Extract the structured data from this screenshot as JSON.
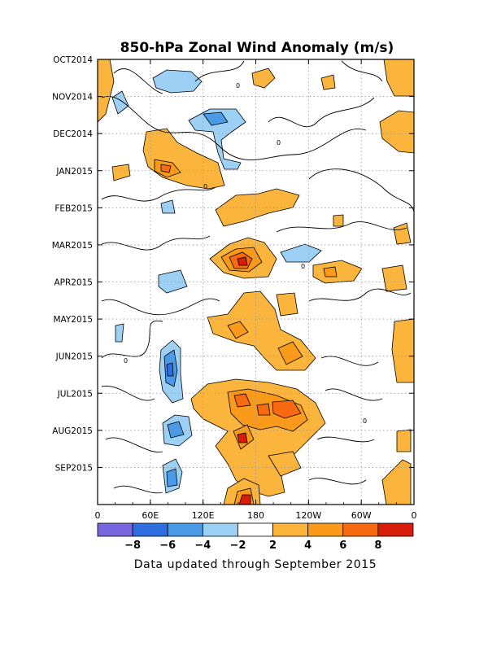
{
  "chart_data": {
    "type": "heatmap",
    "title": "850-hPa Zonal Wind Anomaly (m/s)",
    "x_tick_labels": [
      "0",
      "60E",
      "120E",
      "180",
      "120W",
      "60W",
      "0"
    ],
    "x_range_deg_east": [
      0,
      360
    ],
    "y_tick_labels": [
      "OCT2014",
      "NOV2014",
      "DEC2014",
      "JAN2015",
      "FEB2015",
      "MAR2015",
      "APR2015",
      "MAY2015",
      "JUN2015",
      "JUL2015",
      "AUG2015",
      "SEP2015"
    ],
    "y_range": [
      "2014-10-01",
      "2015-09-30"
    ],
    "grid": true,
    "colorbar": {
      "orientation": "horizontal",
      "tick_labels": [
        "-8",
        "-6",
        "-4",
        "-2",
        "2",
        "4",
        "6",
        "8"
      ],
      "colors": [
        "#7766dd",
        "#2e6ee0",
        "#4a9ae8",
        "#9cd0f5",
        "#ffffff",
        "#fbb43c",
        "#f99a1a",
        "#f86a12",
        "#d81e0a"
      ]
    },
    "contour_label": "0",
    "positive_anomaly_centers": [
      {
        "lon": 80,
        "date": "2015-01-08",
        "peak": 7
      },
      {
        "lon": 190,
        "date": "2015-02-05",
        "peak": 4
      },
      {
        "lon": 168,
        "date": "2015-03-15",
        "peak": 9
      },
      {
        "lon": 265,
        "date": "2015-03-28",
        "peak": 5
      },
      {
        "lon": 155,
        "date": "2015-05-10",
        "peak": 6
      },
      {
        "lon": 210,
        "date": "2015-05-30",
        "peak": 5
      },
      {
        "lon": 160,
        "date": "2015-07-03",
        "peak": 8
      },
      {
        "lon": 210,
        "date": "2015-07-10",
        "peak": 7
      },
      {
        "lon": 165,
        "date": "2015-07-28",
        "peak": 8
      },
      {
        "lon": 165,
        "date": "2015-09-25",
        "peak": 8
      },
      {
        "lon": 345,
        "date": "2014-12-05",
        "peak": 4
      }
    ],
    "negative_anomaly_centers": [
      {
        "lon": 95,
        "date": "2014-10-20",
        "peak": -3
      },
      {
        "lon": 140,
        "date": "2014-12-01",
        "peak": -3
      },
      {
        "lon": 80,
        "date": "2015-06-15",
        "peak": -6
      },
      {
        "lon": 85,
        "date": "2015-08-01",
        "peak": -5
      },
      {
        "lon": 85,
        "date": "2015-09-01",
        "peak": -4
      },
      {
        "lon": 255,
        "date": "2015-03-05",
        "peak": -3
      }
    ]
  },
  "footer": {
    "note": "Data updated through September 2015"
  }
}
